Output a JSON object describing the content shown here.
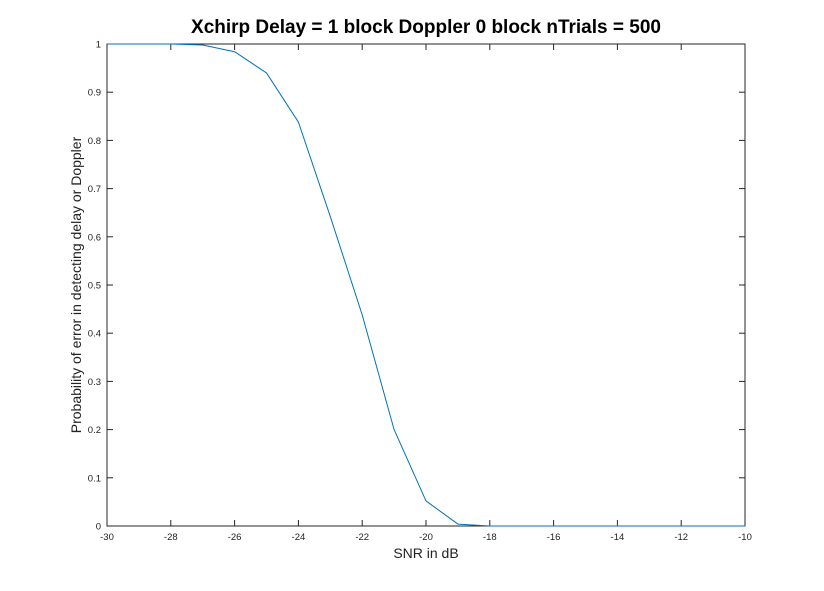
{
  "chart_data": {
    "type": "line",
    "title": "Xchirp Delay = 1 block Doppler 0 block nTrials = 500",
    "xlabel": "SNR in dB",
    "ylabel": "Probability of error in detecting delay or Doppler",
    "xlim": [
      -30,
      -10
    ],
    "ylim": [
      0,
      1
    ],
    "xticks": [
      -30,
      -28,
      -26,
      -24,
      -22,
      -20,
      -18,
      -16,
      -14,
      -12,
      -10
    ],
    "yticks": [
      0,
      0.1,
      0.2,
      0.3,
      0.4,
      0.5,
      0.6,
      0.7,
      0.8,
      0.9,
      1
    ],
    "grid": false,
    "line_color": "#0072BD",
    "series": [
      {
        "x": [
          -30,
          -29,
          -28,
          -27,
          -26,
          -25,
          -24,
          -23,
          -22,
          -21,
          -20,
          -19,
          -18,
          -17,
          -16,
          -15,
          -14,
          -13,
          -12,
          -11,
          -10
        ],
        "y": [
          1.0,
          1.0,
          1.0,
          0.998,
          0.984,
          0.94,
          0.838,
          0.642,
          0.438,
          0.2,
          0.052,
          0.004,
          0.0,
          0.0,
          0.0,
          0.0,
          0.0,
          0.0,
          0.0,
          0.0,
          0.0
        ]
      }
    ]
  }
}
